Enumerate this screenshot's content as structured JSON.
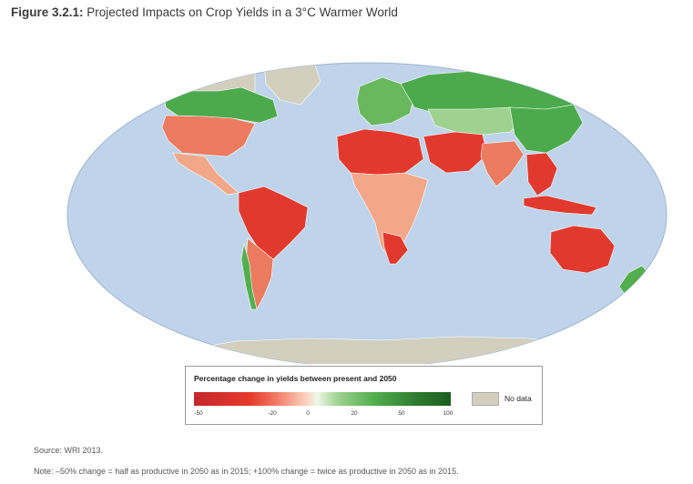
{
  "figure": {
    "label": "Figure 3.2.1:",
    "title": "Projected Impacts on Crop Yields in a 3°C Warmer World"
  },
  "map": {
    "projection": "robinson-style world map",
    "ocean_color": "#bfd4ea",
    "no_data_color": "#d3cfbf",
    "regions": [
      {
        "name": "Canada (south)",
        "category": "increase"
      },
      {
        "name": "United States (east)",
        "category": "decrease"
      },
      {
        "name": "Mexico & Central America",
        "category": "decrease"
      },
      {
        "name": "Brazil",
        "category": "strong decrease"
      },
      {
        "name": "Southern Andes / Chile",
        "category": "increase"
      },
      {
        "name": "North Africa & Sahara",
        "category": "strong decrease"
      },
      {
        "name": "Sub-Saharan Africa",
        "category": "decrease"
      },
      {
        "name": "Scandinavia & Russia",
        "category": "increase"
      },
      {
        "name": "Middle East",
        "category": "strong decrease"
      },
      {
        "name": "India",
        "category": "decrease"
      },
      {
        "name": "China (north)",
        "category": "increase"
      },
      {
        "name": "Southeast Asia",
        "category": "strong decrease"
      },
      {
        "name": "Australia",
        "category": "strong decrease"
      },
      {
        "name": "New Zealand",
        "category": "increase"
      },
      {
        "name": "Greenland & Antarctica",
        "category": "no data"
      }
    ]
  },
  "legend": {
    "title": "Percentage change in yields between present and 2050",
    "scale_min": -50,
    "scale_max": 100,
    "ticks": [
      "-50",
      "-20",
      "0",
      "20",
      "50",
      "100"
    ],
    "no_data_label": "No data"
  },
  "source": "Source: WRI 2013.",
  "note": "Note: –50% change = half as productive in 2050 as in 2015; +100% change = twice as productive in 2050 as in 2015."
}
